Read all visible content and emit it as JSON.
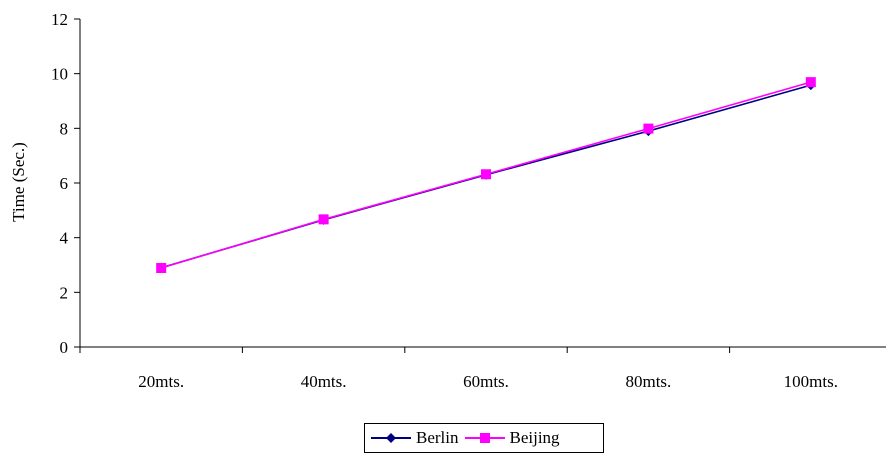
{
  "chart_data": {
    "type": "line",
    "categories": [
      "20mts.",
      "40mts.",
      "60mts.",
      "80mts.",
      "100mts."
    ],
    "series": [
      {
        "name": "Berlin",
        "values": [
          2.9,
          4.65,
          6.3,
          7.9,
          9.58
        ],
        "color": "#000080",
        "marker": "diamond"
      },
      {
        "name": "Beijing",
        "values": [
          2.89,
          4.67,
          6.32,
          7.99,
          9.69
        ],
        "color": "#FF00FF",
        "marker": "square"
      }
    ],
    "title": "",
    "xlabel": "",
    "ylabel": "Time (Sec.)",
    "ylim": [
      0,
      12
    ],
    "yticks": [
      0,
      2,
      4,
      6,
      8,
      10,
      12
    ],
    "grid": false,
    "legend_position": "bottom"
  }
}
